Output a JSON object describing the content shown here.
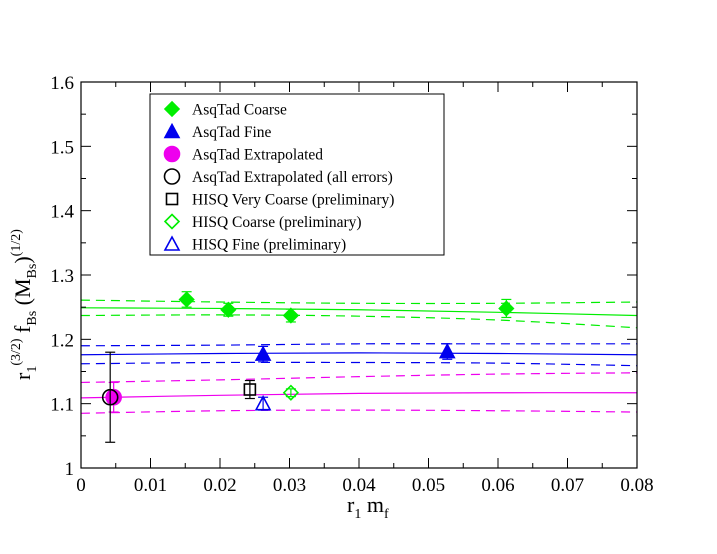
{
  "chart_data": {
    "type": "scatter",
    "xlabel": {
      "main": "r",
      "sub1": "1",
      "rest": " m",
      "sub2": "f"
    },
    "ylabel": {
      "p1": "r",
      "s1": "1",
      "sup1": "(3/2)",
      "p2": " f",
      "s2": "Bs",
      "p3": " (M",
      "s3": "Bs",
      "p4": ")",
      "sup2": "(1/2)"
    },
    "xlim": [
      0,
      0.08
    ],
    "ylim": [
      1.0,
      1.6
    ],
    "xticks": [
      0,
      0.01,
      0.02,
      0.03,
      0.04,
      0.05,
      0.06,
      0.07,
      0.08
    ],
    "xtick_labels": [
      "0",
      "0.01",
      "0.02",
      "0.03",
      "0.04",
      "0.05",
      "0.06",
      "0.07",
      "0.08"
    ],
    "yticks": [
      1.0,
      1.1,
      1.2,
      1.3,
      1.4,
      1.5,
      1.6
    ],
    "ytick_labels": [
      "1",
      "1.1",
      "1.2",
      "1.3",
      "1.4",
      "1.5",
      "1.6"
    ],
    "legend_position": "top-left",
    "series": [
      {
        "name": "AsqTad Coarse",
        "marker": "diamond",
        "filled": true,
        "color": "#00ee00",
        "points": [
          {
            "x": 0.0152,
            "y": 1.262,
            "err": 0.012
          },
          {
            "x": 0.0212,
            "y": 1.246,
            "err": 0.01
          },
          {
            "x": 0.0302,
            "y": 1.237,
            "err": 0.01
          },
          {
            "x": 0.0612,
            "y": 1.248,
            "err": 0.014
          }
        ]
      },
      {
        "name": "AsqTad Fine",
        "marker": "triangle",
        "filled": true,
        "color": "#0000ee",
        "points": [
          {
            "x": 0.0262,
            "y": 1.177,
            "err": 0.012
          },
          {
            "x": 0.0527,
            "y": 1.181,
            "err": 0.012
          }
        ]
      },
      {
        "name": "AsqTad Extrapolated",
        "marker": "circle",
        "filled": true,
        "color": "#ee00ee",
        "points": [
          {
            "x": 0.0047,
            "y": 1.11,
            "err": 0.023
          }
        ]
      },
      {
        "name": "AsqTad Extrapolated (all errors)",
        "marker": "circle",
        "filled": false,
        "color": "#000000",
        "points": [
          {
            "x": 0.0042,
            "y": 1.11,
            "err": 0.07
          }
        ]
      },
      {
        "name": "HISQ Very Coarse (preliminary)",
        "marker": "square",
        "filled": false,
        "color": "#000000",
        "points": [
          {
            "x": 0.0243,
            "y": 1.122,
            "err": 0.014
          }
        ]
      },
      {
        "name": "HISQ Coarse (preliminary)",
        "marker": "diamond",
        "filled": false,
        "color": "#00ee00",
        "points": [
          {
            "x": 0.0302,
            "y": 1.117,
            "err": 0.006
          }
        ]
      },
      {
        "name": "HISQ Fine (preliminary)",
        "marker": "triangle",
        "filled": false,
        "color": "#0000ee",
        "points": [
          {
            "x": 0.0262,
            "y": 1.1,
            "err": 0.01
          }
        ]
      }
    ],
    "fit_curves": [
      {
        "name": "coarse-fit",
        "color": "#00ee00",
        "style": "solid",
        "x": [
          0,
          0.02,
          0.04,
          0.06,
          0.08
        ],
        "y": [
          1.249,
          1.248,
          1.246,
          1.242,
          1.237
        ]
      },
      {
        "name": "coarse-fit-upper",
        "color": "#00ee00",
        "style": "dashed",
        "x": [
          0,
          0.02,
          0.04,
          0.06,
          0.08
        ],
        "y": [
          1.261,
          1.258,
          1.256,
          1.256,
          1.258
        ]
      },
      {
        "name": "coarse-fit-lower",
        "color": "#00ee00",
        "style": "dashed",
        "x": [
          0,
          0.02,
          0.04,
          0.06,
          0.08
        ],
        "y": [
          1.237,
          1.238,
          1.236,
          1.23,
          1.218
        ]
      },
      {
        "name": "fine-fit",
        "color": "#0000ee",
        "style": "solid",
        "x": [
          0,
          0.02,
          0.04,
          0.06,
          0.08
        ],
        "y": [
          1.176,
          1.178,
          1.179,
          1.178,
          1.176
        ]
      },
      {
        "name": "fine-fit-upper",
        "color": "#0000ee",
        "style": "dashed",
        "x": [
          0,
          0.02,
          0.04,
          0.06,
          0.08
        ],
        "y": [
          1.19,
          1.191,
          1.193,
          1.193,
          1.193
        ]
      },
      {
        "name": "fine-fit-lower",
        "color": "#0000ee",
        "style": "dashed",
        "x": [
          0,
          0.02,
          0.04,
          0.06,
          0.08
        ],
        "y": [
          1.162,
          1.164,
          1.164,
          1.163,
          1.159
        ]
      },
      {
        "name": "extrap-fit",
        "color": "#ee00ee",
        "style": "solid",
        "x": [
          0,
          0.02,
          0.04,
          0.06,
          0.08
        ],
        "y": [
          1.109,
          1.113,
          1.116,
          1.117,
          1.117
        ]
      },
      {
        "name": "extrap-fit-upper",
        "color": "#ee00ee",
        "style": "dashed",
        "x": [
          0,
          0.02,
          0.04,
          0.06,
          0.08
        ],
        "y": [
          1.133,
          1.137,
          1.142,
          1.146,
          1.148
        ]
      },
      {
        "name": "extrap-fit-lower",
        "color": "#ee00ee",
        "style": "dashed",
        "x": [
          0,
          0.02,
          0.04,
          0.06,
          0.08
        ],
        "y": [
          1.085,
          1.089,
          1.09,
          1.089,
          1.087
        ]
      }
    ]
  }
}
